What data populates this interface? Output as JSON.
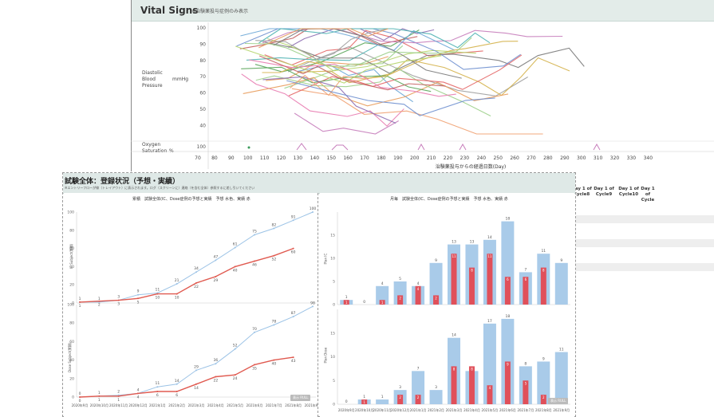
{
  "vitals": {
    "title": "Vital Signs",
    "subtitle": "※治験薬投与症例のみ表示",
    "row1_label": [
      "Diastolic",
      "Blood",
      "Pressure"
    ],
    "row1_unit": "mmHg",
    "row2_label": [
      "Oxygen",
      "Saturation"
    ],
    "row2_unit": "%",
    "y_ticks": [
      "100",
      "90",
      "80",
      "70",
      "60",
      "50",
      "40"
    ],
    "spo2_tick": "100",
    "x_ticks": [
      "70",
      "80",
      "90",
      "100",
      "110",
      "120",
      "130",
      "140",
      "150",
      "160",
      "170",
      "180",
      "190",
      "200",
      "210",
      "220",
      "230",
      "240",
      "250",
      "260",
      "270",
      "280",
      "290",
      "300",
      "310",
      "320",
      "330",
      "340"
    ],
    "x_title": "治験薬投与からの経過日数(Day)"
  },
  "right_table": {
    "headers": [
      [
        "Day 1 of",
        "Cycle8"
      ],
      [
        "Day 1 of",
        "Cycle9"
      ],
      [
        "Day 1 of",
        "Cycle10"
      ],
      [
        "Day 1 of",
        "Cycle"
      ]
    ]
  },
  "enroll": {
    "title": "試験全体：登録状況（予想・実績）",
    "note": "※エントリーフローが線（トレイアウト）に表示されます。ログ（スクリーンに）連絡（を含む全体）参照するに差し引いてください",
    "left_header": "累積　試験全体(IC、Dose症例の予想と実績　予想 水色、実績 赤",
    "right_header": "月毎　試験全体(IC、Dose症例の予想と実績　予想 水色、実績 赤",
    "left_y_top_label": "IC Subject(累積)",
    "left_y_bot_label": "Dose Subject(累積)",
    "right_y_top_label": "Plan IC",
    "right_y_bot_label": "Plan Dose",
    "left_months": [
      "2020年9月",
      "2020年10月",
      "2020年11月",
      "2020年12月",
      "2021年1月",
      "2021年2月",
      "2021年3月",
      "2021年4月",
      "2021年5月",
      "2021年6月",
      "2021年7月",
      "2021年8月",
      "2021年9月"
    ],
    "right_months": [
      "2020年9月",
      "2020年10月",
      "2020年11月",
      "2020年12月",
      "2021年1月",
      "2021年2月",
      "2021年3月",
      "2021年4月",
      "2021年5月",
      "2021年6月",
      "2021年7月",
      "2021年8月",
      "2021年9月"
    ],
    "badge": "表示 RULL"
  },
  "chart_data": [
    {
      "type": "line",
      "title": "累積　試験全体(IC、Dose症例の予想と実績　予想 水色、実績 赤",
      "ylabel": "IC Subject(累積)",
      "categories": [
        "2020年9月",
        "2020年10月",
        "2020年11月",
        "2020年12月",
        "2021年1月",
        "2021年2月",
        "2021年3月",
        "2021年4月",
        "2021年5月",
        "2021年6月",
        "2021年7月",
        "2021年8月",
        "2021年9月"
      ],
      "ylim": [
        0,
        100
      ],
      "series": [
        {
          "name": "予想",
          "color": "#9cc3e6",
          "values": [
            1,
            1,
            3,
            9,
            11,
            21,
            34,
            47,
            61,
            75,
            82,
            91,
            100
          ]
        },
        {
          "name": "実績",
          "color": "#e05a50",
          "values": [
            1,
            2,
            3,
            5,
            10,
            10,
            22,
            29,
            40,
            46,
            52,
            60,
            null
          ]
        }
      ]
    },
    {
      "type": "line",
      "ylabel": "Dose Subject(累積)",
      "categories": [
        "2020年9月",
        "2020年10月",
        "2020年11月",
        "2020年12月",
        "2021年1月",
        "2021年2月",
        "2021年3月",
        "2021年4月",
        "2021年5月",
        "2021年6月",
        "2021年7月",
        "2021年8月",
        "2021年9月"
      ],
      "ylim": [
        0,
        100
      ],
      "series": [
        {
          "name": "予想",
          "color": "#9cc3e6",
          "values": [
            0,
            1,
            2,
            4,
            11,
            14,
            29,
            36,
            52,
            70,
            78,
            87,
            98
          ]
        },
        {
          "name": "実績",
          "color": "#e05a50",
          "values": [
            0,
            1,
            1,
            4,
            6,
            6,
            14,
            22,
            24,
            35,
            40,
            43,
            null
          ]
        }
      ]
    },
    {
      "type": "bar",
      "title": "月毎　試験全体(IC、Dose症例の予想と実績　予想 水色、実績 赤",
      "ylabel": "Plan IC",
      "categories": [
        "2020年9月",
        "2020年10月",
        "2020年11月",
        "2020年12月",
        "2021年1月",
        "2021年2月",
        "2021年3月",
        "2021年4月",
        "2021年5月",
        "2021年6月",
        "2021年7月",
        "2021年8月",
        "2021年9月"
      ],
      "ylim": [
        0,
        20
      ],
      "series": [
        {
          "name": "予想",
          "color": "#a9cbe9",
          "values": [
            1,
            0,
            4,
            5,
            4,
            9,
            13,
            13,
            14,
            18,
            7,
            11,
            9
          ]
        },
        {
          "name": "実績",
          "color": "#e0505a",
          "values": [
            1,
            0,
            1,
            2,
            4,
            2,
            11,
            8,
            11,
            6,
            6,
            8,
            null
          ]
        }
      ]
    },
    {
      "type": "bar",
      "ylabel": "Plan Dose",
      "categories": [
        "2020年9月",
        "2020年10月",
        "2020年11月",
        "2020年12月",
        "2021年1月",
        "2021年2月",
        "2021年3月",
        "2021年4月",
        "2021年5月",
        "2021年6月",
        "2021年7月",
        "2021年8月",
        "2021年9月"
      ],
      "ylim": [
        0,
        20
      ],
      "series": [
        {
          "name": "予想",
          "color": "#a9cbe9",
          "values": [
            0,
            1,
            1,
            3,
            7,
            3,
            14,
            7,
            17,
            18,
            8,
            9,
            11
          ]
        },
        {
          "name": "実績",
          "color": "#e0505a",
          "values": [
            0,
            1,
            0,
            2,
            2,
            0,
            8,
            8,
            4,
            9,
            5,
            2,
            null
          ]
        }
      ]
    }
  ]
}
